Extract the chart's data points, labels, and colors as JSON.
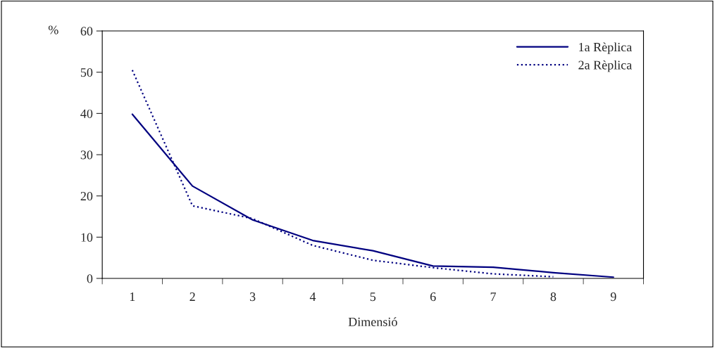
{
  "chart_data": {
    "type": "line",
    "xlabel": "Dimensió",
    "ylabel": "%",
    "categories": [
      "1",
      "2",
      "3",
      "4",
      "5",
      "6",
      "7",
      "8",
      "9"
    ],
    "series": [
      {
        "name": "1a Rèplica",
        "color": "#000080",
        "line_style": "solid",
        "values": [
          39.8,
          22.4,
          14.2,
          9.2,
          6.7,
          3.0,
          2.7,
          1.4,
          0.3
        ]
      },
      {
        "name": "2a Rèplica",
        "color": "#000080",
        "line_style": "dotted",
        "values": [
          50.5,
          17.6,
          14.5,
          8.0,
          4.4,
          2.6,
          1.1,
          0.4,
          null
        ]
      }
    ],
    "ylim": [
      0,
      60
    ],
    "yticks": [
      0,
      10,
      20,
      30,
      40,
      50,
      60
    ],
    "grid": false,
    "legend": "top right",
    "marker": "none"
  }
}
